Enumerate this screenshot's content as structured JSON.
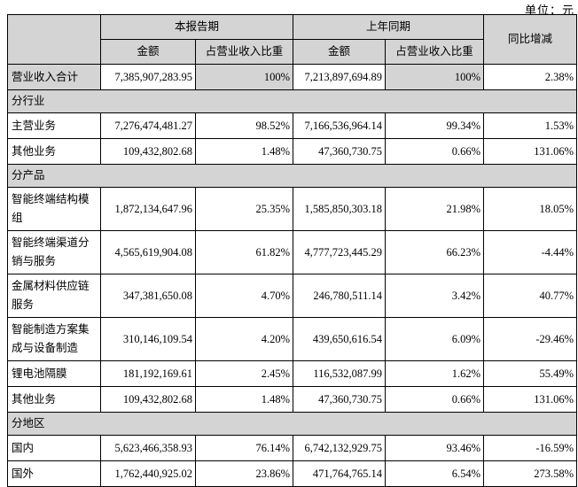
{
  "unit_label": "单位：元",
  "colors": {
    "shaded_bg": "#d4d4d4",
    "border": "#000000",
    "text": "#000000",
    "page_bg": "#ffffff"
  },
  "table": {
    "header": {
      "corner": "",
      "col_current_period": "本报告期",
      "col_prior_period": "上年同期",
      "col_yoy_change": "同比增减",
      "sub_amount_current": "金额",
      "sub_ratio_current": "占营业收入比重",
      "sub_amount_prior": "金额",
      "sub_ratio_prior": "占营业收入比重"
    },
    "rows": [
      {
        "type": "data",
        "shaded": true,
        "label": "营业收入合计",
        "cells": [
          "7,385,907,283.95",
          "100%",
          "7,213,897,694.89",
          "100%",
          "2.38%"
        ]
      },
      {
        "type": "section",
        "label": "分行业"
      },
      {
        "type": "data",
        "shaded": false,
        "label": "主营业务",
        "cells": [
          "7,276,474,481.27",
          "98.52%",
          "7,166,536,964.14",
          "99.34%",
          "1.53%"
        ]
      },
      {
        "type": "data",
        "shaded": false,
        "label": "其他业务",
        "cells": [
          "109,432,802.68",
          "1.48%",
          "47,360,730.75",
          "0.66%",
          "131.06%"
        ]
      },
      {
        "type": "section",
        "label": "分产品"
      },
      {
        "type": "data",
        "shaded": false,
        "label": "智能终端结构模组",
        "cells": [
          "1,872,134,647.96",
          "25.35%",
          "1,585,850,303.18",
          "21.98%",
          "18.05%"
        ]
      },
      {
        "type": "data",
        "shaded": false,
        "label": "智能终端渠道分销与服务",
        "cells": [
          "4,565,619,904.08",
          "61.82%",
          "4,777,723,445.29",
          "66.23%",
          "-4.44%"
        ]
      },
      {
        "type": "data",
        "shaded": false,
        "label": "金属材料供应链服务",
        "cells": [
          "347,381,650.08",
          "4.70%",
          "246,780,511.14",
          "3.42%",
          "40.77%"
        ]
      },
      {
        "type": "data",
        "shaded": false,
        "label": "智能制造方案集成与设备制造",
        "cells": [
          "310,146,109.54",
          "4.20%",
          "439,650,616.54",
          "6.09%",
          "-29.46%"
        ]
      },
      {
        "type": "data",
        "shaded": false,
        "label": "锂电池隔膜",
        "cells": [
          "181,192,169.61",
          "2.45%",
          "116,532,087.99",
          "1.62%",
          "55.49%"
        ]
      },
      {
        "type": "data",
        "shaded": false,
        "label": "其他业务",
        "cells": [
          "109,432,802.68",
          "1.48%",
          "47,360,730.75",
          "0.66%",
          "131.06%"
        ]
      },
      {
        "type": "section",
        "label": "分地区"
      },
      {
        "type": "data",
        "shaded": false,
        "label": "国内",
        "cells": [
          "5,623,466,358.93",
          "76.14%",
          "6,742,132,929.75",
          "93.46%",
          "-16.59%"
        ]
      },
      {
        "type": "data",
        "shaded": false,
        "label": "国外",
        "cells": [
          "1,762,440,925.02",
          "23.86%",
          "471,764,765.14",
          "6.54%",
          "273.58%"
        ]
      }
    ]
  }
}
